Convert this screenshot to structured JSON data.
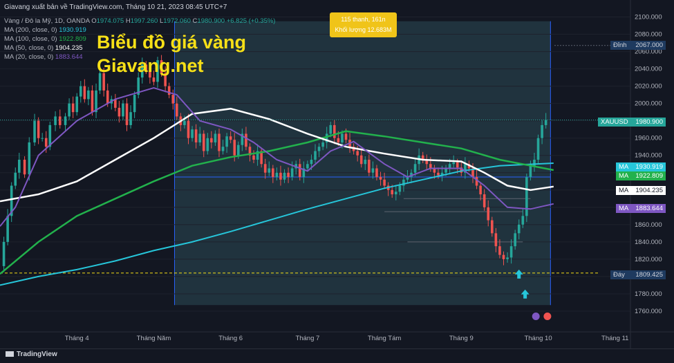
{
  "header": "Giavang xuất bản về TradingView.com, Tháng 10 21, 2023 08:45 UTC+7",
  "symbol_line": {
    "name": "Vàng / Đô la Mỹ, 1D, OANDA",
    "o_label": "O",
    "o": "1974.075",
    "h_label": "H",
    "h": "1997.260",
    "l_label": "L",
    "l": "1972.060",
    "c_label": "C",
    "c": "1980.900",
    "change": "+6.825 (+0.35%)"
  },
  "indicators": [
    {
      "label": "MA (200, close, 0)",
      "value": "1930.919",
      "color": "#26c6da"
    },
    {
      "label": "MA (100, close, 0)",
      "value": "1922.809",
      "color": "#22b14c"
    },
    {
      "label": "MA (50, close, 0)",
      "value": "1904.235",
      "color": "#ffffff"
    },
    {
      "label": "MA (20, close, 0)",
      "value": "1883.644",
      "color": "#7e57c2"
    }
  ],
  "brand": {
    "line1": "Biểu đồ giá vàng",
    "line2": "Giavang.net"
  },
  "range_tooltip": {
    "line1": "115 thanh, 161n",
    "line2": "Khối lượng 12.683M"
  },
  "price_tags": {
    "dinh": {
      "label": "Đỉnh",
      "value": "2067.000"
    },
    "day": {
      "label": "Đáy",
      "value": "1809.425"
    },
    "xauusd": {
      "label": "XAUUSD",
      "value": "1980.900"
    },
    "ma200": {
      "label": "MA",
      "value": "1930.919"
    },
    "ma100": {
      "label": "MA",
      "value": "1922.809"
    },
    "ma50": {
      "label": "MA",
      "value": "1904.235"
    },
    "ma20": {
      "label": "MA",
      "value": "1883.644"
    }
  },
  "footer": {
    "logo": "TradingView"
  },
  "chart_data": {
    "type": "candlestick",
    "instrument": "XAUUSD",
    "timeframe": "1D",
    "y_ticks": [
      1760,
      1780,
      1800,
      1820,
      1840,
      1860,
      1880,
      1900,
      1920,
      1940,
      1960,
      1980,
      2000,
      2020,
      2040,
      2060,
      2080,
      2100
    ],
    "y_tick_labels": [
      "1760.000",
      "1780.000",
      "1800.000",
      "1820.000",
      "1840.000",
      "1860.000",
      "1880.000",
      "1900.000",
      "1920.000",
      "1940.000",
      "1960.000",
      "1980.000",
      "2000.000",
      "2020.000",
      "2040.000",
      "2060.000",
      "2080.000",
      "2100.000"
    ],
    "ylim": [
      1740,
      2110
    ],
    "x_ticks": [
      {
        "label": "Tháng 4",
        "month": 4
      },
      {
        "label": "Tháng Năm",
        "month": 5
      },
      {
        "label": "Tháng 6",
        "month": 6
      },
      {
        "label": "Tháng 7",
        "month": 7
      },
      {
        "label": "Tháng Tám",
        "month": 8
      },
      {
        "label": "Tháng 9",
        "month": 9
      },
      {
        "label": "Tháng 10",
        "month": 10
      },
      {
        "label": "Tháng 11",
        "month": 11
      }
    ],
    "x_month_range": [
      3.0,
      11.2
    ],
    "close_path": [
      [
        3.0,
        1812
      ],
      [
        3.05,
        1840
      ],
      [
        3.1,
        1870
      ],
      [
        3.15,
        1905
      ],
      [
        3.2,
        1920
      ],
      [
        3.25,
        1935
      ],
      [
        3.32,
        1918
      ],
      [
        3.38,
        1955
      ],
      [
        3.45,
        1980
      ],
      [
        3.5,
        1960
      ],
      [
        3.55,
        1960
      ],
      [
        3.6,
        1950
      ],
      [
        3.65,
        1975
      ],
      [
        3.72,
        1985
      ],
      [
        3.78,
        1975
      ],
      [
        3.85,
        1985
      ],
      [
        3.9,
        2000
      ],
      [
        3.95,
        1990
      ],
      [
        4.0,
        2008
      ],
      [
        4.05,
        2020
      ],
      [
        4.1,
        2005
      ],
      [
        4.15,
        2015
      ],
      [
        4.2,
        1990
      ],
      [
        4.25,
        2015
      ],
      [
        4.3,
        2035
      ],
      [
        4.35,
        2015
      ],
      [
        4.4,
        2000
      ],
      [
        4.45,
        2005
      ],
      [
        4.5,
        1995
      ],
      [
        4.55,
        1985
      ],
      [
        4.6,
        2000
      ],
      [
        4.65,
        1975
      ],
      [
        4.7,
        1990
      ],
      [
        4.75,
        2010
      ],
      [
        4.8,
        2030
      ],
      [
        4.85,
        2045
      ],
      [
        4.9,
        2038
      ],
      [
        4.95,
        2030
      ],
      [
        5.0,
        2025
      ],
      [
        5.05,
        2050
      ],
      [
        5.1,
        2035
      ],
      [
        5.15,
        2020
      ],
      [
        5.2,
        2010
      ],
      [
        5.25,
        2000
      ],
      [
        5.3,
        1985
      ],
      [
        5.35,
        1975
      ],
      [
        5.4,
        1980
      ],
      [
        5.45,
        1960
      ],
      [
        5.5,
        1970
      ],
      [
        5.55,
        1955
      ],
      [
        5.6,
        1965
      ],
      [
        5.65,
        1945
      ],
      [
        5.7,
        1960
      ],
      [
        5.75,
        1955
      ],
      [
        5.8,
        1965
      ],
      [
        5.85,
        1945
      ],
      [
        5.9,
        1950
      ],
      [
        5.95,
        1962
      ],
      [
        6.0,
        1958
      ],
      [
        6.05,
        1940
      ],
      [
        6.1,
        1952
      ],
      [
        6.15,
        1965
      ],
      [
        6.2,
        1950
      ],
      [
        6.25,
        1940
      ],
      [
        6.3,
        1935
      ],
      [
        6.35,
        1945
      ],
      [
        6.4,
        1930
      ],
      [
        6.45,
        1920
      ],
      [
        6.5,
        1925
      ],
      [
        6.55,
        1915
      ],
      [
        6.6,
        1920
      ],
      [
        6.65,
        1912
      ],
      [
        6.7,
        1920
      ],
      [
        6.75,
        1915
      ],
      [
        6.8,
        1925
      ],
      [
        6.85,
        1930
      ],
      [
        6.9,
        1915
      ],
      [
        6.95,
        1925
      ],
      [
        7.0,
        1930
      ],
      [
        7.05,
        1935
      ],
      [
        7.1,
        1945
      ],
      [
        7.15,
        1950
      ],
      [
        7.2,
        1955
      ],
      [
        7.25,
        1965
      ],
      [
        7.3,
        1975
      ],
      [
        7.35,
        1960
      ],
      [
        7.4,
        1955
      ],
      [
        7.45,
        1965
      ],
      [
        7.5,
        1958
      ],
      [
        7.55,
        1950
      ],
      [
        7.6,
        1945
      ],
      [
        7.65,
        1940
      ],
      [
        7.7,
        1930
      ],
      [
        7.75,
        1935
      ],
      [
        7.8,
        1920
      ],
      [
        7.85,
        1925
      ],
      [
        7.9,
        1915
      ],
      [
        7.95,
        1912
      ],
      [
        8.0,
        1905
      ],
      [
        8.05,
        1900
      ],
      [
        8.1,
        1895
      ],
      [
        8.15,
        1898
      ],
      [
        8.2,
        1905
      ],
      [
        8.25,
        1912
      ],
      [
        8.3,
        1915
      ],
      [
        8.35,
        1920
      ],
      [
        8.4,
        1930
      ],
      [
        8.45,
        1940
      ],
      [
        8.5,
        1935
      ],
      [
        8.55,
        1930
      ],
      [
        8.6,
        1925
      ],
      [
        8.65,
        1920
      ],
      [
        8.7,
        1917
      ],
      [
        8.75,
        1920
      ],
      [
        8.8,
        1925
      ],
      [
        8.85,
        1930
      ],
      [
        8.9,
        1932
      ],
      [
        8.95,
        1926
      ],
      [
        9.0,
        1920
      ],
      [
        9.05,
        1930
      ],
      [
        9.1,
        1925
      ],
      [
        9.15,
        1915
      ],
      [
        9.2,
        1905
      ],
      [
        9.25,
        1895
      ],
      [
        9.3,
        1880
      ],
      [
        9.35,
        1865
      ],
      [
        9.4,
        1850
      ],
      [
        9.45,
        1835
      ],
      [
        9.5,
        1825
      ],
      [
        9.55,
        1820
      ],
      [
        9.6,
        1822
      ],
      [
        9.65,
        1835
      ],
      [
        9.7,
        1850
      ],
      [
        9.75,
        1860
      ],
      [
        9.8,
        1870
      ],
      [
        9.85,
        1915
      ],
      [
        9.9,
        1928
      ],
      [
        9.95,
        1935
      ],
      [
        10.0,
        1960
      ],
      [
        10.05,
        1975
      ],
      [
        10.1,
        1981
      ]
    ],
    "candle_bodies": "drawn from close_path",
    "top_price": "2067.000",
    "bottom_price": "1809.425"
  }
}
